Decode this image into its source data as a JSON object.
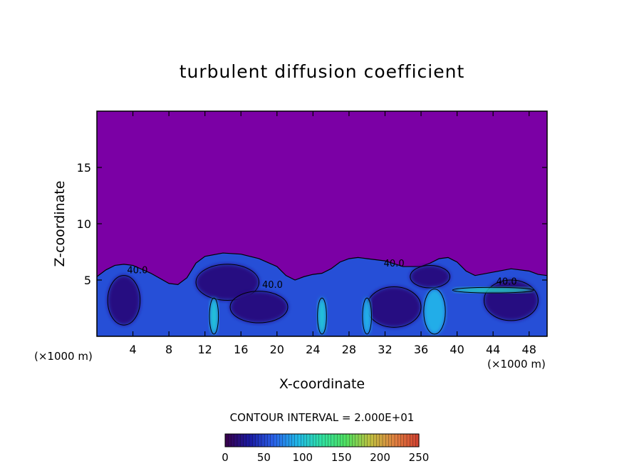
{
  "chart_data": {
    "type": "heatmap",
    "title": "turbulent diffusion coefficient",
    "xlabel": "X-coordinate",
    "ylabel": "Z-coordinate",
    "x_unit_left": "(×1000 m)",
    "x_unit_right": "(×1000 m)",
    "xlim": [
      0,
      50
    ],
    "ylim": [
      0,
      20
    ],
    "xticks": [
      4,
      8,
      12,
      16,
      20,
      24,
      28,
      32,
      36,
      40,
      44,
      48
    ],
    "yticks": [
      5,
      10,
      15
    ],
    "contour_interval_label": "CONTOUR INTERVAL = 2.000E+01",
    "contour_interval": 20,
    "contour_labels": [
      "40.0",
      "40.0",
      "40.0",
      "40.0"
    ],
    "colorbar": {
      "min": 0,
      "max": 250,
      "ticks": [
        "0",
        "50",
        "100",
        "150",
        "200",
        "250"
      ],
      "colors": [
        "#3a004a",
        "#1a1aa0",
        "#2a60e8",
        "#20b8e8",
        "#30e0a0",
        "#50e060",
        "#c0c040",
        "#e08040",
        "#d04030"
      ]
    },
    "background_value_color": "#7b00a5",
    "turbulent_layer_top_profile": {
      "x": [
        0,
        1,
        2,
        3,
        4,
        6,
        8,
        9,
        10,
        11,
        12,
        14,
        16,
        18,
        20,
        21,
        22,
        23,
        24,
        25,
        26,
        27,
        28,
        29,
        30,
        32,
        34,
        36,
        37,
        38,
        39,
        40,
        41,
        42,
        44,
        46,
        48,
        49,
        50
      ],
      "z": [
        5.3,
        5.9,
        6.3,
        6.4,
        6.3,
        5.6,
        4.7,
        4.6,
        5.2,
        6.5,
        7.1,
        7.4,
        7.3,
        6.9,
        6.2,
        5.4,
        5.0,
        5.3,
        5.5,
        5.6,
        6.0,
        6.6,
        6.9,
        7.0,
        6.9,
        6.7,
        6.2,
        6.2,
        6.5,
        6.9,
        7.0,
        6.6,
        5.8,
        5.4,
        5.7,
        6.0,
        5.8,
        5.5,
        5.4
      ]
    },
    "fields": [
      {
        "name": "",
        "x": 3,
        "z": 3.2,
        "rx": 1.8,
        "rz": 2.2,
        "value": 20
      },
      {
        "name": "",
        "x": 14.5,
        "z": 4.8,
        "rx": 3.5,
        "rz": 1.6,
        "value": 20
      },
      {
        "name": "",
        "x": 18,
        "z": 2.6,
        "rx": 3.2,
        "rz": 1.4,
        "value": 20
      },
      {
        "name": "",
        "x": 33,
        "z": 2.6,
        "rx": 3.0,
        "rz": 1.8,
        "value": 20
      },
      {
        "name": "",
        "x": 46,
        "z": 3.2,
        "rx": 3.0,
        "rz": 1.8,
        "value": 20
      },
      {
        "name": "",
        "x": 37,
        "z": 5.3,
        "rx": 2.2,
        "rz": 1.0,
        "value": 20
      },
      {
        "name": "",
        "x": 13,
        "z": 1.8,
        "rx": 0.5,
        "rz": 1.6,
        "value": 100
      },
      {
        "name": "",
        "x": 25,
        "z": 1.8,
        "rx": 0.5,
        "rz": 1.6,
        "value": 100
      },
      {
        "name": "",
        "x": 30,
        "z": 1.8,
        "rx": 0.5,
        "rz": 1.6,
        "value": 90
      },
      {
        "name": "",
        "x": 44,
        "z": 4.1,
        "rx": 4.5,
        "rz": 0.25,
        "value": 110
      },
      {
        "name": "",
        "x": 37.5,
        "z": 2.2,
        "rx": 1.2,
        "rz": 2.0,
        "value": 90
      }
    ]
  }
}
